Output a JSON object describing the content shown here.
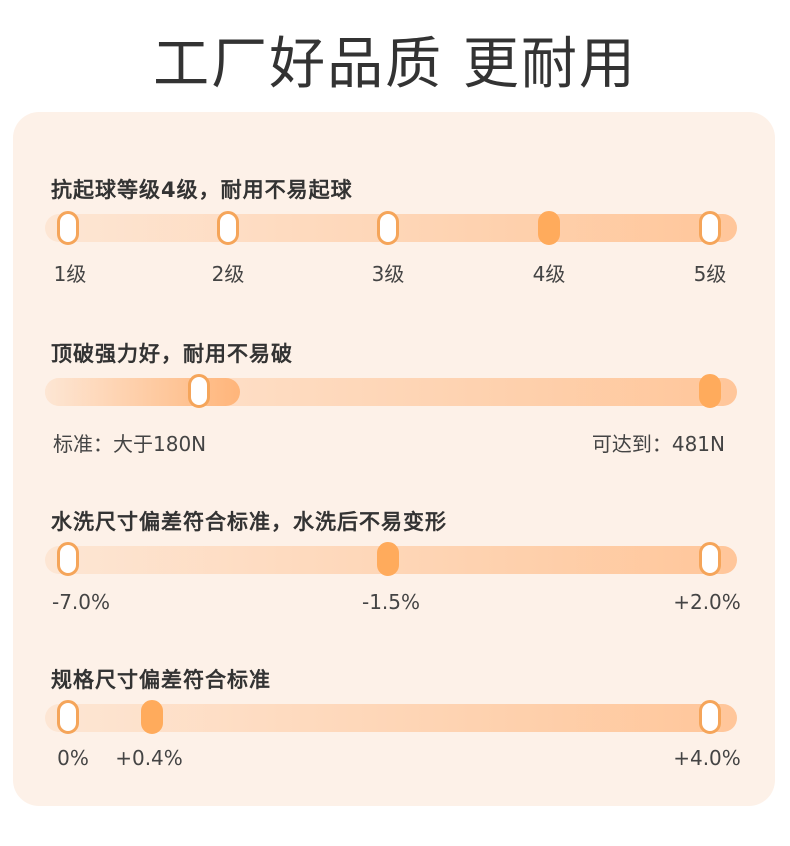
{
  "title": "工厂好品质 更耐用",
  "sections": [
    {
      "title": "抗起球等级4级，耐用不易起球",
      "labels": [
        "1级",
        "2级",
        "3级",
        "4级",
        "5级"
      ],
      "selected_level": 4
    },
    {
      "title": "顶破强力好，耐用不易破",
      "left_label": "标准：大于180N",
      "right_label": "可达到：481N",
      "standard_value_n": 180,
      "achieved_value_n": 481
    },
    {
      "title": "水洗尺寸偏差符合标准，水洗后不易变形",
      "labels": [
        "-7.0%",
        "-1.5%",
        "+2.0%"
      ],
      "value_percent": -1.5
    },
    {
      "title": "规格尺寸偏差符合标准",
      "labels": [
        "0%",
        "+0.4%",
        "+4.0%"
      ],
      "value_percent": 0.4
    }
  ],
  "colors": {
    "accent": "#ffab5c",
    "track_light": "#fde6d4",
    "track_dark": "#ffc69a",
    "card_bg": "#fdf1e8",
    "text": "#333333"
  }
}
